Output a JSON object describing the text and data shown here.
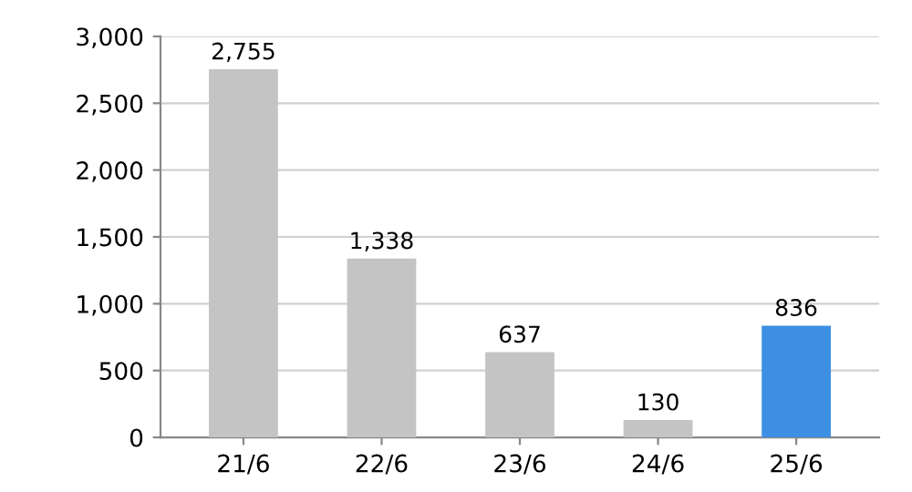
{
  "chart_data": {
    "type": "bar",
    "categories": [
      "21/6",
      "22/6",
      "23/6",
      "24/6",
      "25/6"
    ],
    "values": [
      2755,
      1338,
      637,
      130,
      836
    ],
    "colors": [
      "#c4c4c4",
      "#c4c4c4",
      "#c4c4c4",
      "#c4c4c4",
      "#3d8fe3"
    ],
    "value_labels": [
      "2,755",
      "1,338",
      "637",
      "130",
      "836"
    ],
    "ylim": [
      0,
      3000
    ],
    "yticks": [
      {
        "value": 0,
        "label": "0"
      },
      {
        "value": 500,
        "label": "500"
      },
      {
        "value": 1000,
        "label": "1,000"
      },
      {
        "value": 1500,
        "label": "1,500"
      },
      {
        "value": 2000,
        "label": "2,000"
      },
      {
        "value": 2500,
        "label": "2,500"
      },
      {
        "value": 3000,
        "label": "3,000"
      }
    ],
    "grid": "y"
  }
}
